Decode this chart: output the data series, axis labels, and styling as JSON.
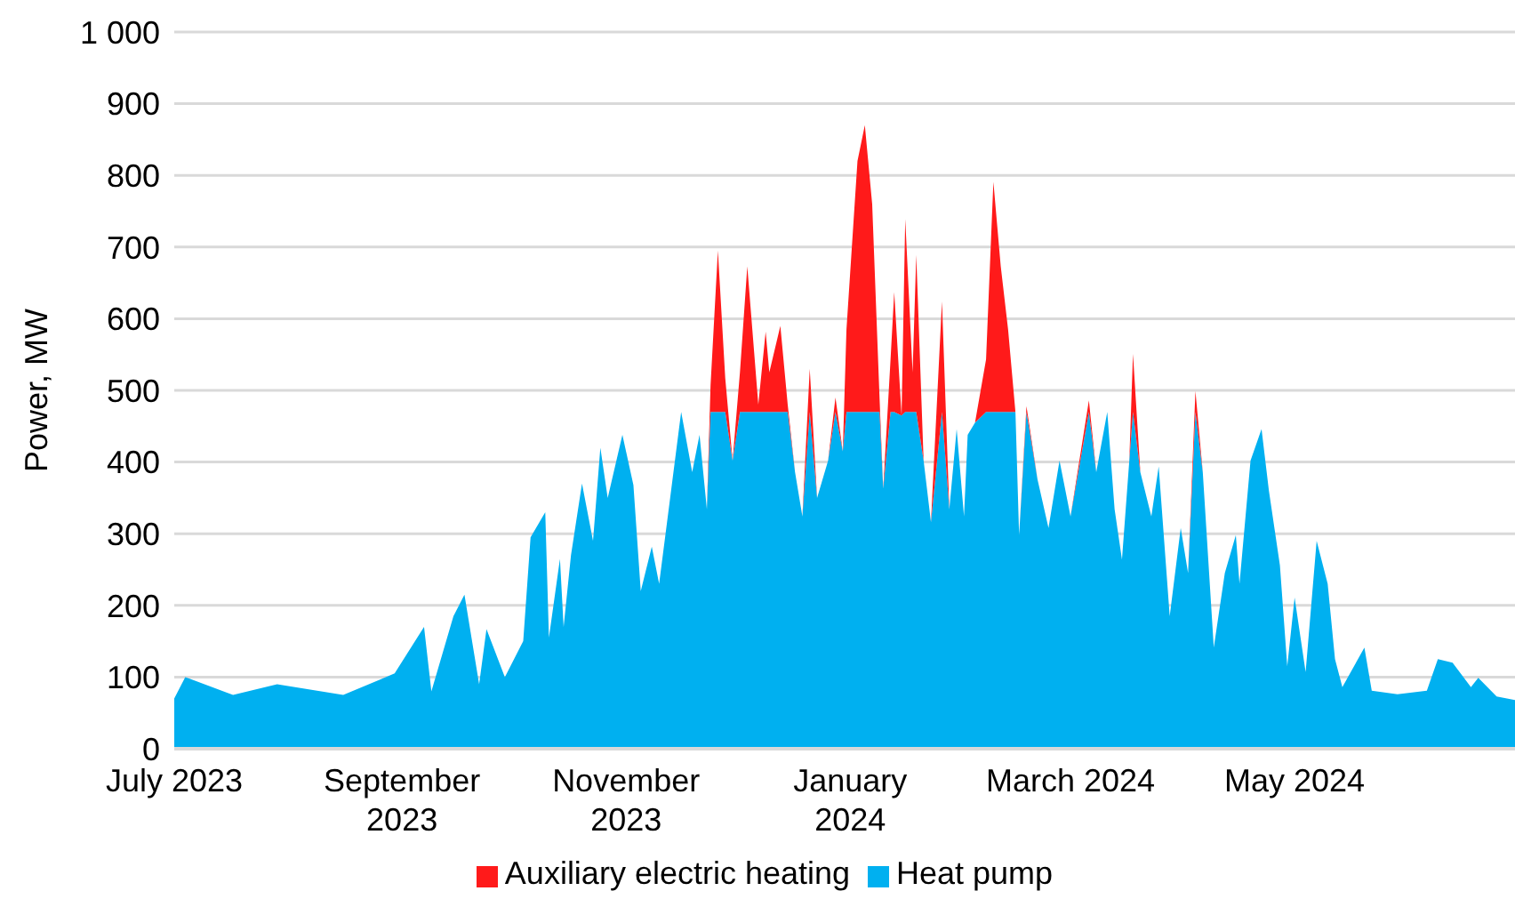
{
  "chart_data": {
    "type": "area",
    "stacked": true,
    "ylabel": "Power, MW",
    "x": [
      "2023-07-01",
      "2023-07-04",
      "2023-07-17",
      "2023-07-29",
      "2023-08-16",
      "2023-08-30",
      "2023-09-07",
      "2023-09-09",
      "2023-09-15",
      "2023-09-18",
      "2023-09-22",
      "2023-09-24",
      "2023-09-29",
      "2023-10-04",
      "2023-10-06",
      "2023-10-10",
      "2023-10-11",
      "2023-10-14",
      "2023-10-15",
      "2023-10-17",
      "2023-10-20",
      "2023-10-23",
      "2023-10-25",
      "2023-10-27",
      "2023-10-31",
      "2023-11-03",
      "2023-11-05",
      "2023-11-08",
      "2023-11-10",
      "2023-11-13",
      "2023-11-16",
      "2023-11-19",
      "2023-11-21",
      "2023-11-23",
      "2023-11-24",
      "2023-11-26",
      "2023-11-28",
      "2023-11-30",
      "2023-12-02",
      "2023-12-04",
      "2023-12-07",
      "2023-12-09",
      "2023-12-10",
      "2023-12-13",
      "2023-12-15",
      "2023-12-17",
      "2023-12-19",
      "2023-12-21",
      "2023-12-23",
      "2023-12-26",
      "2023-12-28",
      "2023-12-30",
      "2023-12-31",
      "2024-01-03",
      "2024-01-05",
      "2024-01-07",
      "2024-01-09",
      "2024-01-10",
      "2024-01-12",
      "2024-01-13",
      "2024-01-15",
      "2024-01-16",
      "2024-01-18",
      "2024-01-19",
      "2024-01-21",
      "2024-01-23",
      "2024-01-26",
      "2024-01-28",
      "2024-01-30",
      "2024-02-01",
      "2024-02-02",
      "2024-02-04",
      "2024-02-07",
      "2024-02-09",
      "2024-02-11",
      "2024-02-13",
      "2024-02-15",
      "2024-02-16",
      "2024-02-18",
      "2024-02-21",
      "2024-02-24",
      "2024-02-27",
      "2024-03-01",
      "2024-03-06",
      "2024-03-08",
      "2024-03-11",
      "2024-03-13",
      "2024-03-15",
      "2024-03-17",
      "2024-03-18",
      "2024-03-20",
      "2024-03-23",
      "2024-03-25",
      "2024-03-28",
      "2024-03-31",
      "2024-04-02",
      "2024-04-04",
      "2024-04-06",
      "2024-04-09",
      "2024-04-12",
      "2024-04-15",
      "2024-04-16",
      "2024-04-19",
      "2024-04-22",
      "2024-04-24",
      "2024-04-27",
      "2024-04-29",
      "2024-05-01",
      "2024-05-04",
      "2024-05-07",
      "2024-05-10",
      "2024-05-12",
      "2024-05-14",
      "2024-05-20",
      "2024-05-22",
      "2024-05-29",
      "2024-06-06",
      "2024-06-09",
      "2024-06-13",
      "2024-06-18",
      "2024-06-20",
      "2024-06-25",
      "2024-06-30"
    ],
    "series": [
      {
        "name": "Heat pump",
        "color": "#00b0f0",
        "values": [
          70,
          100,
          75,
          90,
          75,
          105,
          170,
          80,
          185,
          215,
          90,
          167,
          100,
          150,
          295,
          330,
          155,
          265,
          170,
          270,
          370,
          290,
          420,
          350,
          438,
          368,
          220,
          282,
          230,
          350,
          470,
          386,
          438,
          334,
          470,
          470,
          470,
          402,
          470,
          470,
          470,
          470,
          470,
          470,
          470,
          386,
          324,
          470,
          350,
          402,
          470,
          415,
          470,
          470,
          470,
          470,
          470,
          363,
          470,
          470,
          465,
          470,
          470,
          470,
          402,
          316,
          470,
          334,
          446,
          324,
          438,
          455,
          470,
          470,
          470,
          470,
          470,
          298,
          470,
          376,
          308,
          402,
          324,
          470,
          386,
          470,
          334,
          264,
          402,
          470,
          386,
          324,
          394,
          185,
          308,
          245,
          470,
          386,
          141,
          245,
          298,
          230,
          402,
          446,
          360,
          256,
          115,
          211,
          107,
          290,
          230,
          125,
          86,
          141,
          81,
          76,
          81,
          125,
          120,
          86,
          99,
          73,
          68
        ]
      },
      {
        "name": "Auxiliary electric heating",
        "color": "#ff1a1a",
        "values": [
          0,
          0,
          0,
          0,
          0,
          0,
          0,
          0,
          0,
          0,
          0,
          0,
          0,
          0,
          0,
          0,
          0,
          0,
          0,
          0,
          0,
          0,
          0,
          0,
          0,
          0,
          0,
          0,
          0,
          0,
          0,
          0,
          0,
          0,
          37,
          225,
          47,
          0,
          55,
          203,
          10,
          112,
          55,
          120,
          10,
          0,
          0,
          60,
          0,
          0,
          20,
          0,
          115,
          350,
          400,
          290,
          20,
          0,
          73,
          167,
          0,
          269,
          55,
          219,
          0,
          0,
          154,
          0,
          0,
          0,
          0,
          0,
          73,
          321,
          203,
          115,
          0,
          0,
          8,
          0,
          0,
          0,
          0,
          16,
          0,
          0,
          0,
          0,
          0,
          81,
          0,
          0,
          0,
          0,
          0,
          0,
          29,
          0,
          0,
          0,
          0,
          0,
          0,
          0,
          0,
          0,
          0,
          0,
          0,
          0,
          0,
          0,
          0,
          0,
          0,
          0,
          0,
          0,
          0,
          0,
          0,
          0,
          0
        ]
      }
    ],
    "xlim": [
      "2023-07-01",
      "2024-06-30"
    ],
    "xticks": [
      {
        "value": "2023-07-01",
        "label": "July 2023"
      },
      {
        "value": "2023-09-01",
        "label": "September 2023"
      },
      {
        "value": "2023-11-01",
        "label": "November 2023"
      },
      {
        "value": "2024-01-01",
        "label": "January 2024"
      },
      {
        "value": "2024-03-01",
        "label": "March 2024"
      },
      {
        "value": "2024-05-01",
        "label": "May 2024"
      }
    ],
    "ylim": [
      0,
      1000
    ],
    "yticks": [
      0,
      100,
      200,
      300,
      400,
      500,
      600,
      700,
      800,
      900,
      {
        "value": 1000,
        "label": "1 000"
      }
    ],
    "grid": "y",
    "legend": "bottom"
  }
}
